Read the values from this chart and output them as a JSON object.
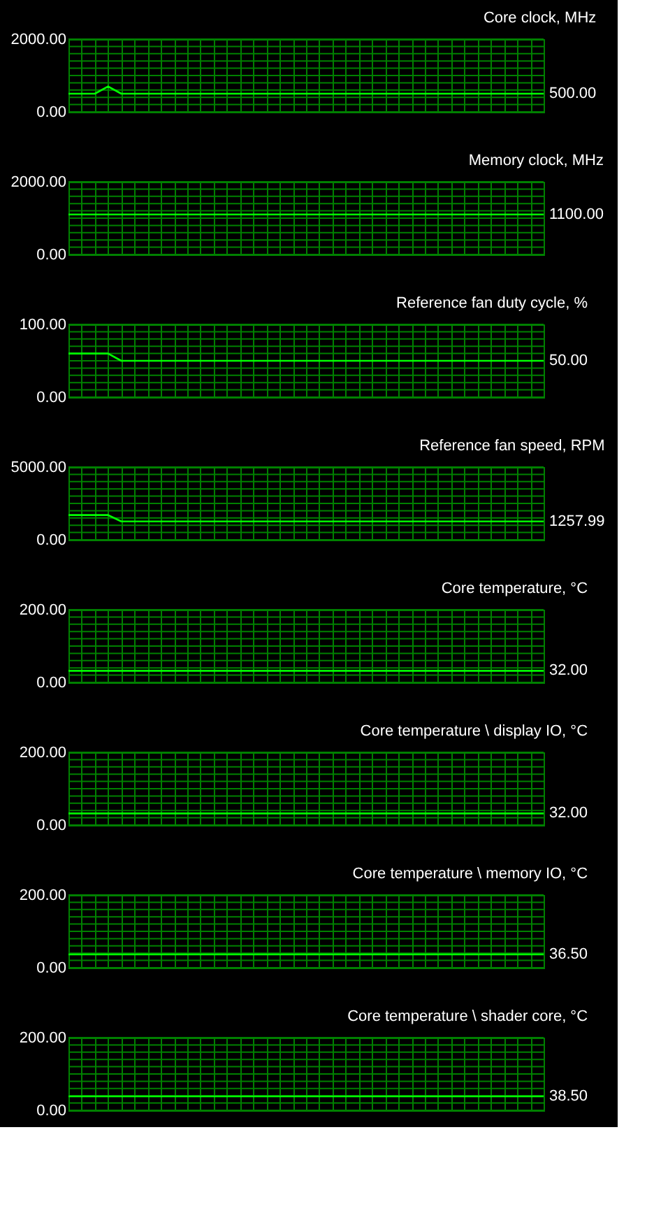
{
  "chart_data": [
    {
      "type": "line",
      "title": "Core clock, MHz",
      "categories": [
        null,
        null,
        null,
        null,
        null,
        null,
        null,
        null,
        null,
        null,
        null,
        null,
        null,
        null,
        null,
        null,
        null,
        null,
        null,
        null,
        null,
        null,
        null,
        null,
        null,
        null,
        null,
        null,
        null,
        null,
        null,
        null,
        null,
        null,
        null,
        null,
        null
      ],
      "series": [
        {
          "color": "#00ff00",
          "values": [
            500,
            500,
            500,
            700,
            500,
            500,
            500,
            500,
            500,
            500,
            500,
            500,
            500,
            500,
            500,
            500,
            500,
            500,
            500,
            500,
            500,
            500,
            500,
            500,
            500,
            500,
            500,
            500,
            500,
            500,
            500,
            500,
            500,
            500,
            500,
            500,
            500
          ]
        }
      ],
      "ylim": [
        0,
        2000
      ],
      "yticks": [
        {
          "value": 0,
          "label": "0.00"
        },
        {
          "value": 200,
          "label": null
        },
        {
          "value": 400,
          "label": null
        },
        {
          "value": 600,
          "label": null
        },
        {
          "value": 800,
          "label": null
        },
        {
          "value": 1000,
          "label": null
        },
        {
          "value": 1200,
          "label": null
        },
        {
          "value": 1400,
          "label": null
        },
        {
          "value": 1600,
          "label": null
        },
        {
          "value": 1800,
          "label": null
        },
        {
          "value": 2000,
          "label": "2000.00"
        }
      ],
      "annotations": [
        "500.00"
      ],
      "grid": true,
      "tick_labels": "y"
    },
    {
      "type": "line",
      "title": "Memory clock, MHz",
      "categories": [
        null,
        null,
        null,
        null,
        null,
        null,
        null,
        null,
        null,
        null,
        null,
        null,
        null,
        null,
        null,
        null,
        null,
        null,
        null,
        null,
        null,
        null,
        null,
        null,
        null,
        null,
        null,
        null,
        null,
        null,
        null,
        null,
        null,
        null,
        null,
        null,
        null
      ],
      "series": [
        {
          "color": "#00ff00",
          "values": [
            1100,
            1100,
            1100,
            1100,
            1100,
            1100,
            1100,
            1100,
            1100,
            1100,
            1100,
            1100,
            1100,
            1100,
            1100,
            1100,
            1100,
            1100,
            1100,
            1100,
            1100,
            1100,
            1100,
            1100,
            1100,
            1100,
            1100,
            1100,
            1100,
            1100,
            1100,
            1100,
            1100,
            1100,
            1100,
            1100,
            1100
          ]
        }
      ],
      "ylim": [
        0,
        2000
      ],
      "yticks": [
        {
          "value": 0,
          "label": "0.00"
        },
        {
          "value": 200,
          "label": null
        },
        {
          "value": 400,
          "label": null
        },
        {
          "value": 600,
          "label": null
        },
        {
          "value": 800,
          "label": null
        },
        {
          "value": 1000,
          "label": null
        },
        {
          "value": 1200,
          "label": null
        },
        {
          "value": 1400,
          "label": null
        },
        {
          "value": 1600,
          "label": null
        },
        {
          "value": 1800,
          "label": null
        },
        {
          "value": 2000,
          "label": "2000.00"
        }
      ],
      "annotations": [
        "1100.00"
      ],
      "grid": true,
      "tick_labels": "y"
    },
    {
      "type": "line",
      "title": "Reference fan duty cycle, %",
      "categories": [
        null,
        null,
        null,
        null,
        null,
        null,
        null,
        null,
        null,
        null,
        null,
        null,
        null,
        null,
        null,
        null,
        null,
        null,
        null,
        null,
        null,
        null,
        null,
        null,
        null,
        null,
        null,
        null,
        null,
        null,
        null,
        null,
        null,
        null,
        null,
        null,
        null
      ],
      "series": [
        {
          "color": "#00ff00",
          "values": [
            60,
            60,
            60,
            60,
            50,
            50,
            50,
            50,
            50,
            50,
            50,
            50,
            50,
            50,
            50,
            50,
            50,
            50,
            50,
            50,
            50,
            50,
            50,
            50,
            50,
            50,
            50,
            50,
            50,
            50,
            50,
            50,
            50,
            50,
            50,
            50,
            50
          ]
        }
      ],
      "ylim": [
        0,
        100
      ],
      "yticks": [
        {
          "value": 0,
          "label": "0.00"
        },
        {
          "value": 10,
          "label": null
        },
        {
          "value": 20,
          "label": null
        },
        {
          "value": 30,
          "label": null
        },
        {
          "value": 40,
          "label": null
        },
        {
          "value": 50,
          "label": null
        },
        {
          "value": 60,
          "label": null
        },
        {
          "value": 70,
          "label": null
        },
        {
          "value": 80,
          "label": null
        },
        {
          "value": 90,
          "label": null
        },
        {
          "value": 100,
          "label": "100.00"
        }
      ],
      "annotations": [
        "50.00"
      ],
      "grid": true,
      "tick_labels": "y"
    },
    {
      "type": "line",
      "title": "Reference fan speed, RPM",
      "categories": [
        null,
        null,
        null,
        null,
        null,
        null,
        null,
        null,
        null,
        null,
        null,
        null,
        null,
        null,
        null,
        null,
        null,
        null,
        null,
        null,
        null,
        null,
        null,
        null,
        null,
        null,
        null,
        null,
        null,
        null,
        null,
        null,
        null,
        null,
        null,
        null,
        null
      ],
      "series": [
        {
          "color": "#00ff00",
          "values": [
            1700,
            1700,
            1700,
            1700,
            1260,
            1260,
            1260,
            1260,
            1260,
            1260,
            1260,
            1260,
            1260,
            1260,
            1260,
            1260,
            1260,
            1260,
            1260,
            1260,
            1260,
            1260,
            1260,
            1260,
            1260,
            1260,
            1260,
            1260,
            1260,
            1260,
            1260,
            1260,
            1260,
            1260,
            1260,
            1260,
            1260
          ]
        }
      ],
      "ylim": [
        0,
        5000
      ],
      "yticks": [
        {
          "value": 0,
          "label": "0.00"
        },
        {
          "value": 500,
          "label": null
        },
        {
          "value": 1000,
          "label": null
        },
        {
          "value": 1500,
          "label": null
        },
        {
          "value": 2000,
          "label": null
        },
        {
          "value": 2500,
          "label": null
        },
        {
          "value": 3000,
          "label": null
        },
        {
          "value": 3500,
          "label": null
        },
        {
          "value": 4000,
          "label": null
        },
        {
          "value": 4500,
          "label": null
        },
        {
          "value": 5000,
          "label": "5000.00"
        }
      ],
      "annotations": [
        "1257.99"
      ],
      "grid": true,
      "tick_labels": "y"
    },
    {
      "type": "line",
      "title": "Core temperature, °C",
      "categories": [
        null,
        null,
        null,
        null,
        null,
        null,
        null,
        null,
        null,
        null,
        null,
        null,
        null,
        null,
        null,
        null,
        null,
        null,
        null,
        null,
        null,
        null,
        null,
        null,
        null,
        null,
        null,
        null,
        null,
        null,
        null,
        null,
        null,
        null,
        null,
        null,
        null
      ],
      "series": [
        {
          "color": "#00ff00",
          "values": [
            32,
            32,
            32,
            32,
            32,
            32,
            32,
            32,
            32,
            32,
            32,
            32,
            32,
            32,
            32,
            32,
            32,
            32,
            32,
            32,
            32,
            32,
            32,
            32,
            32,
            32,
            32,
            32,
            32,
            32,
            32,
            32,
            32,
            32,
            32,
            32,
            32
          ]
        }
      ],
      "ylim": [
        0,
        200
      ],
      "yticks": [
        {
          "value": 0,
          "label": "0.00"
        },
        {
          "value": 20,
          "label": null
        },
        {
          "value": 40,
          "label": null
        },
        {
          "value": 60,
          "label": null
        },
        {
          "value": 80,
          "label": null
        },
        {
          "value": 100,
          "label": null
        },
        {
          "value": 120,
          "label": null
        },
        {
          "value": 140,
          "label": null
        },
        {
          "value": 160,
          "label": null
        },
        {
          "value": 180,
          "label": null
        },
        {
          "value": 200,
          "label": "200.00"
        }
      ],
      "annotations": [
        "32.00"
      ],
      "grid": true,
      "tick_labels": "y"
    },
    {
      "type": "line",
      "title": "Core temperature \\ display IO, °C",
      "categories": [
        null,
        null,
        null,
        null,
        null,
        null,
        null,
        null,
        null,
        null,
        null,
        null,
        null,
        null,
        null,
        null,
        null,
        null,
        null,
        null,
        null,
        null,
        null,
        null,
        null,
        null,
        null,
        null,
        null,
        null,
        null,
        null,
        null,
        null,
        null,
        null,
        null
      ],
      "series": [
        {
          "color": "#00ff00",
          "values": [
            32,
            32,
            32,
            32,
            32,
            32,
            32,
            32,
            32,
            32,
            32,
            32,
            32,
            32,
            32,
            32,
            32,
            32,
            32,
            32,
            32,
            32,
            32,
            32,
            32,
            32,
            32,
            32,
            32,
            32,
            32,
            32,
            32,
            32,
            32,
            32,
            32
          ]
        }
      ],
      "ylim": [
        0,
        200
      ],
      "yticks": [
        {
          "value": 0,
          "label": "0.00"
        },
        {
          "value": 20,
          "label": null
        },
        {
          "value": 40,
          "label": null
        },
        {
          "value": 60,
          "label": null
        },
        {
          "value": 80,
          "label": null
        },
        {
          "value": 100,
          "label": null
        },
        {
          "value": 120,
          "label": null
        },
        {
          "value": 140,
          "label": null
        },
        {
          "value": 160,
          "label": null
        },
        {
          "value": 180,
          "label": null
        },
        {
          "value": 200,
          "label": "200.00"
        }
      ],
      "annotations": [
        "32.00"
      ],
      "grid": true,
      "tick_labels": "y"
    },
    {
      "type": "line",
      "title": "Core temperature \\ memory IO, °C",
      "categories": [
        null,
        null,
        null,
        null,
        null,
        null,
        null,
        null,
        null,
        null,
        null,
        null,
        null,
        null,
        null,
        null,
        null,
        null,
        null,
        null,
        null,
        null,
        null,
        null,
        null,
        null,
        null,
        null,
        null,
        null,
        null,
        null,
        null,
        null,
        null,
        null,
        null
      ],
      "series": [
        {
          "color": "#00ff00",
          "values": [
            36.5,
            36.5,
            36.5,
            36.5,
            36.5,
            36.5,
            36.5,
            36.5,
            36.5,
            36.5,
            36.5,
            36.5,
            36.5,
            36.5,
            36.5,
            36.5,
            36.5,
            36.5,
            36.5,
            36.5,
            36.5,
            36.5,
            36.5,
            36.5,
            36.5,
            36.5,
            36.5,
            36.5,
            36.5,
            36.5,
            36.5,
            36.5,
            36.5,
            36.5,
            36.5,
            36.5,
            36.5
          ]
        }
      ],
      "ylim": [
        0,
        200
      ],
      "yticks": [
        {
          "value": 0,
          "label": "0.00"
        },
        {
          "value": 20,
          "label": null
        },
        {
          "value": 40,
          "label": null
        },
        {
          "value": 60,
          "label": null
        },
        {
          "value": 80,
          "label": null
        },
        {
          "value": 100,
          "label": null
        },
        {
          "value": 120,
          "label": null
        },
        {
          "value": 140,
          "label": null
        },
        {
          "value": 160,
          "label": null
        },
        {
          "value": 180,
          "label": null
        },
        {
          "value": 200,
          "label": "200.00"
        }
      ],
      "annotations": [
        "36.50"
      ],
      "grid": true,
      "tick_labels": "y"
    },
    {
      "type": "line",
      "title": "Core temperature \\ shader core, °C",
      "categories": [
        null,
        null,
        null,
        null,
        null,
        null,
        null,
        null,
        null,
        null,
        null,
        null,
        null,
        null,
        null,
        null,
        null,
        null,
        null,
        null,
        null,
        null,
        null,
        null,
        null,
        null,
        null,
        null,
        null,
        null,
        null,
        null,
        null,
        null,
        null,
        null,
        null
      ],
      "series": [
        {
          "color": "#00ff00",
          "values": [
            38.5,
            38.5,
            38.5,
            38.5,
            38.5,
            38.5,
            38.5,
            38.5,
            38.5,
            38.5,
            38.5,
            38.5,
            38.5,
            38.5,
            38.5,
            38.5,
            38.5,
            38.5,
            38.5,
            38.5,
            38.5,
            38.5,
            38.5,
            38.5,
            38.5,
            38.5,
            38.5,
            38.5,
            38.5,
            38.5,
            38.5,
            38.5,
            38.5,
            38.5,
            38.5,
            38.5,
            38.5
          ]
        }
      ],
      "ylim": [
        0,
        200
      ],
      "yticks": [
        {
          "value": 0,
          "label": "0.00"
        },
        {
          "value": 20,
          "label": null
        },
        {
          "value": 40,
          "label": null
        },
        {
          "value": 60,
          "label": null
        },
        {
          "value": 80,
          "label": null
        },
        {
          "value": 100,
          "label": null
        },
        {
          "value": 120,
          "label": null
        },
        {
          "value": 140,
          "label": null
        },
        {
          "value": 160,
          "label": null
        },
        {
          "value": 180,
          "label": null
        },
        {
          "value": 200,
          "label": "200.00"
        }
      ],
      "annotations": [
        "38.50"
      ],
      "grid": true,
      "tick_labels": "y"
    }
  ]
}
